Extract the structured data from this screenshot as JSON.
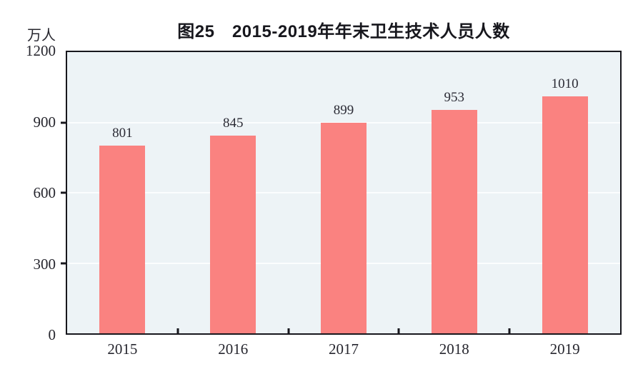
{
  "chart_data": {
    "type": "bar",
    "title": "图25　2015-2019年年末卫生技术人员人数",
    "unit_label": "万人",
    "categories": [
      "2015",
      "2016",
      "2017",
      "2018",
      "2019"
    ],
    "values": [
      801,
      845,
      899,
      953,
      1010
    ],
    "value_labels": [
      "801",
      "845",
      "899",
      "953",
      "1010"
    ],
    "ylim": [
      0,
      1200
    ],
    "yticks": [
      0,
      300,
      600,
      900,
      1200
    ],
    "gridline_values": [
      300,
      600,
      900
    ],
    "legend": "none",
    "grid": "horizontal",
    "colors": {
      "bar": "#fa8280",
      "plot_background": "#edf3f6",
      "gridline": "#fbfdfe",
      "axis": "#17171d",
      "text": "#26262e"
    }
  }
}
